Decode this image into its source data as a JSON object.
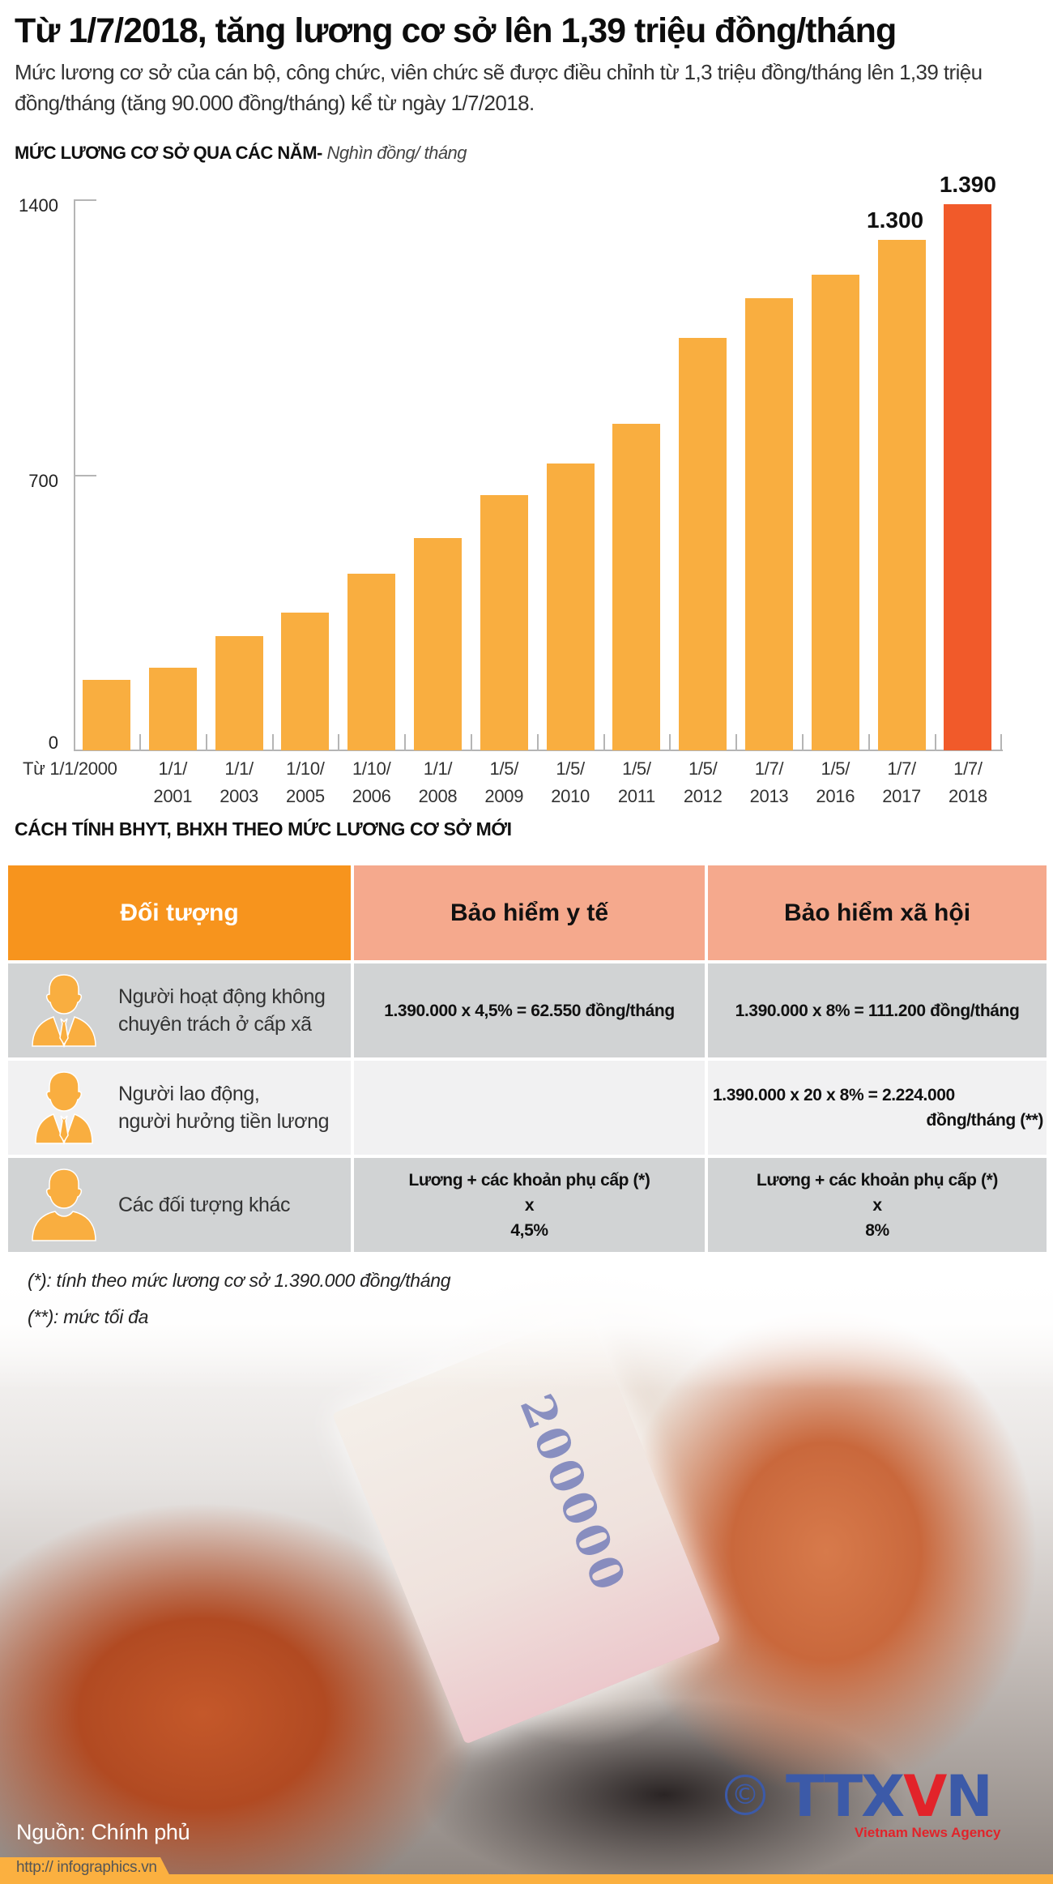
{
  "header": {
    "title": "Từ 1/7/2018, tăng lương cơ sở lên 1,39 triệu đồng/tháng",
    "subtitle": "Mức lương cơ sở của cán bộ, công chức, viên chức sẽ được điều chỉnh từ 1,3 triệu đồng/tháng lên 1,39 triệu đồng/tháng (tăng 90.000 đồng/tháng) kể từ ngày 1/7/2018."
  },
  "chart_section": {
    "heading_bold": "MỨC LƯƠNG CƠ SỞ QUA CÁC NĂM-",
    "heading_unit": "Nghìn đồng/ tháng"
  },
  "chart_data": {
    "type": "bar",
    "title": "MỨC LƯƠNG CƠ SỞ QUA CÁC NĂM",
    "ylabel": "Nghìn đồng/ tháng",
    "xlabel": "",
    "ylim": [
      0,
      1400
    ],
    "yticks": [
      0,
      700,
      1400
    ],
    "grid": false,
    "categories": [
      "Từ 1/1/2000",
      "1/1/2001",
      "1/1/2003",
      "1/10/2005",
      "1/10/2006",
      "1/1/2008",
      "1/5/2009",
      "1/5/2010",
      "1/5/2011",
      "1/5/2012",
      "1/7/2013",
      "1/5/2016",
      "1/7/2017",
      "1/7/2018"
    ],
    "category_lines": [
      [
        "Từ 1/1/2000",
        ""
      ],
      [
        "1/1/",
        "2001"
      ],
      [
        "1/1/",
        "2003"
      ],
      [
        "1/10/",
        "2005"
      ],
      [
        "1/10/",
        "2006"
      ],
      [
        "1/1/",
        "2008"
      ],
      [
        "1/5/",
        "2009"
      ],
      [
        "1/5/",
        "2010"
      ],
      [
        "1/5/",
        "2011"
      ],
      [
        "1/5/",
        "2012"
      ],
      [
        "1/7/",
        "2013"
      ],
      [
        "1/5/",
        "2016"
      ],
      [
        "1/7/",
        "2017"
      ],
      [
        "1/7/",
        "2018"
      ]
    ],
    "values": [
      180,
      210,
      290,
      350,
      450,
      540,
      650,
      730,
      830,
      1050,
      1150,
      1210,
      1300,
      1390
    ],
    "data_labels": {
      "12": "1.300",
      "13": "1.390"
    },
    "colors": {
      "default": "#f9ae40",
      "highlight": "#f15a2a"
    },
    "highlight_index": 13
  },
  "table_section": {
    "heading": "CÁCH TÍNH BHYT, BHXH THEO MỨC LƯƠNG CƠ SỞ MỚI",
    "columns": [
      "Đối tượng",
      "Bảo hiểm y tế",
      "Bảo hiểm xã hội"
    ],
    "rows": [
      {
        "subject": [
          "Người hoạt động không",
          "chuyên trách ở cấp xã"
        ],
        "health": "1.390.000 x 4,5% = 62.550 đồng/tháng",
        "social": "1.390.000 x 8% = 111.200 đồng/tháng"
      },
      {
        "subject": [
          "Người lao động,",
          "người hưởng tiền lương"
        ],
        "health": "",
        "social": [
          "1.390.000 x 20 x 8% = 2.224.000",
          "đồng/tháng (**)"
        ]
      },
      {
        "subject": [
          "Các đối tượng khác"
        ],
        "health": [
          "Lương + các khoản phụ cấp (*)",
          "x",
          "4,5%"
        ],
        "social": [
          "Lương + các khoản phụ cấp (*)",
          "x",
          "8%"
        ]
      }
    ],
    "colors": {
      "header_subject": "#f7941d",
      "header_other": "#f5a98d",
      "row_dark": "#d1d3d4",
      "row_light": "#f1f1f2",
      "icon": "#f9ae40"
    }
  },
  "footnotes": [
    "(*): tính theo mức lương cơ sở 1.390.000 đồng/tháng",
    "(**): mức tối đa"
  ],
  "photo": {
    "banknote_value": "200000"
  },
  "footer": {
    "source": "Nguồn: Chính phủ",
    "url": "http:// infographics.vn",
    "logo_copyright": "©",
    "logo_text_a": "TTX",
    "logo_text_v": "V",
    "logo_text_n": "N",
    "logo_tagline": "Vietnam News Agency"
  }
}
